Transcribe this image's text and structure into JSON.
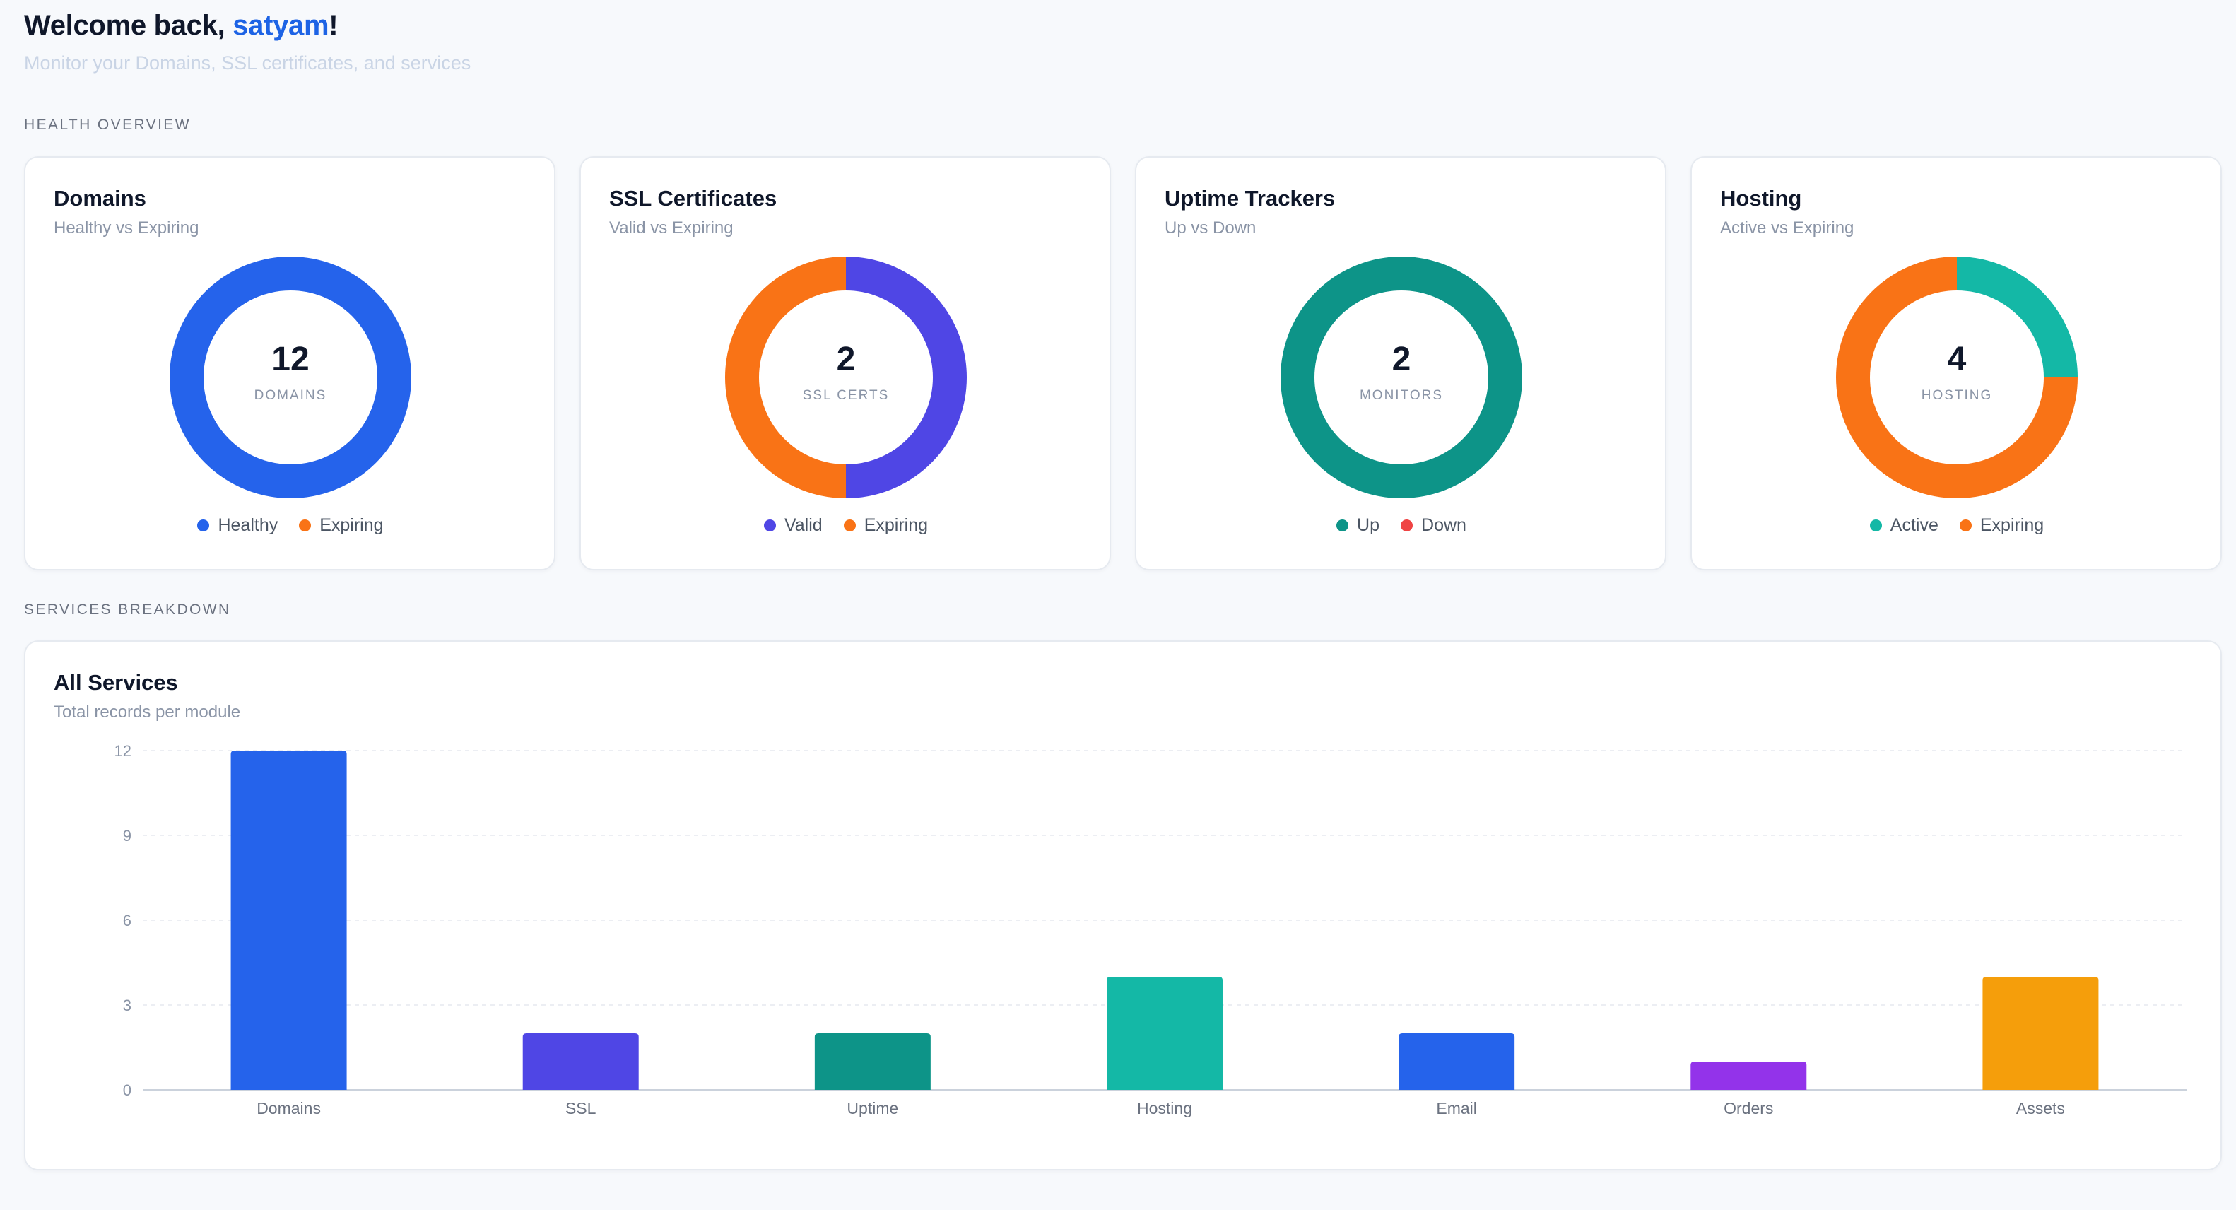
{
  "header": {
    "greeting": "Welcome back, ",
    "username": "satyam",
    "punct": "!",
    "subtitle": "Monitor your Domains, SSL certificates, and services"
  },
  "sections": {
    "health": "HEALTH OVERVIEW",
    "services": "SERVICES BREAKDOWN"
  },
  "health_cards": [
    {
      "title": "Domains",
      "subtitle": "Healthy vs Expiring",
      "value": "12",
      "unit": "DOMAINS",
      "segments": [
        {
          "label": "Healthy",
          "value": 12,
          "color": "#2563eb"
        },
        {
          "label": "Expiring",
          "value": 0,
          "color": "#f97316"
        }
      ]
    },
    {
      "title": "SSL Certificates",
      "subtitle": "Valid vs Expiring",
      "value": "2",
      "unit": "SSL CERTS",
      "segments": [
        {
          "label": "Valid",
          "value": 1,
          "color": "#4f46e5"
        },
        {
          "label": "Expiring",
          "value": 1,
          "color": "#f97316"
        }
      ]
    },
    {
      "title": "Uptime Trackers",
      "subtitle": "Up vs Down",
      "value": "2",
      "unit": "MONITORS",
      "segments": [
        {
          "label": "Up",
          "value": 2,
          "color": "#0d9488"
        },
        {
          "label": "Down",
          "value": 0,
          "color": "#ef4444"
        }
      ]
    },
    {
      "title": "Hosting",
      "subtitle": "Active vs Expiring",
      "value": "4",
      "unit": "HOSTING",
      "segments": [
        {
          "label": "Active",
          "value": 1,
          "color": "#14b8a6"
        },
        {
          "label": "Expiring",
          "value": 3,
          "color": "#f97316"
        }
      ]
    }
  ],
  "services_card": {
    "title": "All Services",
    "subtitle": "Total records per module"
  },
  "chart_data": {
    "type": "bar",
    "categories": [
      "Domains",
      "SSL",
      "Uptime",
      "Hosting",
      "Email",
      "Orders",
      "Assets"
    ],
    "values": [
      12,
      2,
      2,
      4,
      2,
      1,
      4
    ],
    "colors": [
      "#2563eb",
      "#4f46e5",
      "#0d9488",
      "#14b8a6",
      "#2563eb",
      "#9333ea",
      "#f59e0b"
    ],
    "yticks": [
      0,
      3,
      6,
      9,
      12
    ],
    "ylim": [
      0,
      12
    ],
    "grid": true,
    "title": "",
    "xlabel": "",
    "ylabel": ""
  }
}
